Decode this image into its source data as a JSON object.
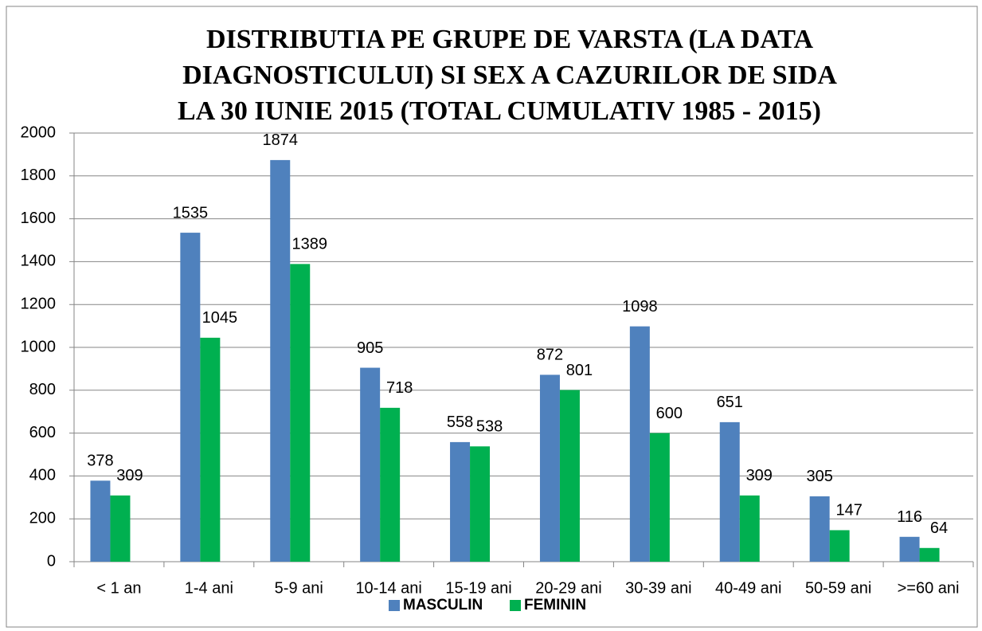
{
  "chart_data": {
    "type": "bar",
    "title": [
      "DISTRIBUTIA PE GRUPE DE VARSTA (LA DATA",
      "DIAGNOSTICULUI)  SI SEX A  CAZURILOR  DE SIDA",
      "LA 30 IUNIE 2015 (TOTAL CUMULATIV 1985 - 2015)"
    ],
    "categories": [
      "< 1 an",
      "1-4 ani",
      "5-9 ani",
      "10-14 ani",
      "15-19 ani",
      "20-29 ani",
      "30-39 ani",
      "40-49 ani",
      "50-59 ani",
      ">=60 ani"
    ],
    "series": [
      {
        "name": "MASCULIN",
        "color": "#4f81bd",
        "values": [
          378,
          1535,
          1874,
          905,
          558,
          872,
          1098,
          651,
          305,
          116
        ]
      },
      {
        "name": "FEMININ",
        "color": "#00b050",
        "values": [
          309,
          1045,
          1389,
          718,
          538,
          801,
          600,
          309,
          147,
          64
        ]
      }
    ],
    "ylim": [
      0,
      2000
    ],
    "yticks": [
      0,
      200,
      400,
      600,
      800,
      1000,
      1200,
      1400,
      1600,
      1800,
      2000
    ],
    "grid": true,
    "legend": "bottom"
  }
}
